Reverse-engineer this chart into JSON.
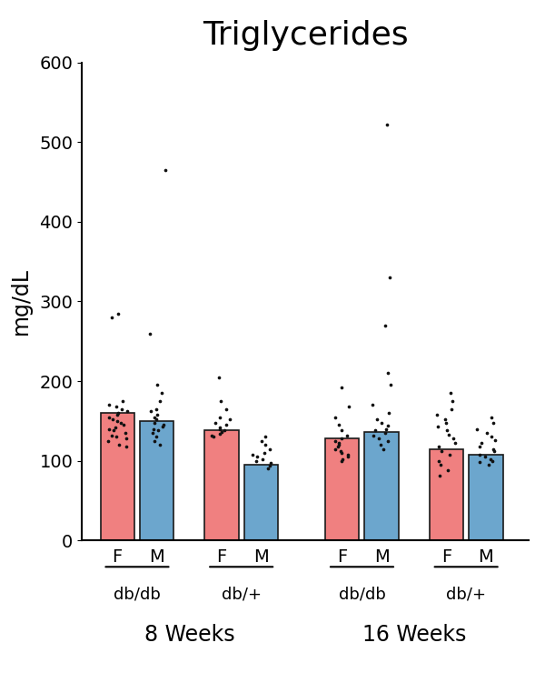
{
  "title": "Triglycerides",
  "ylabel": "mg/dL",
  "ylim": [
    0,
    600
  ],
  "yticks": [
    0,
    100,
    200,
    300,
    400,
    500,
    600
  ],
  "bar_heights": [
    160,
    150,
    138,
    95,
    128,
    136,
    115,
    108
  ],
  "bar_colors": [
    "#F08080",
    "#6CA6CD",
    "#F08080",
    "#6CA6CD",
    "#F08080",
    "#6CA6CD",
    "#F08080",
    "#6CA6CD"
  ],
  "bar_edge_color": "#1a1a1a",
  "bar_width": 0.62,
  "group_labels": [
    "F",
    "M",
    "F",
    "M",
    "F",
    "M",
    "F",
    "M"
  ],
  "genotype_labels": [
    "db/db",
    "db/+",
    "db/db",
    "db/+"
  ],
  "age_labels": [
    "8 Weeks",
    "16 Weeks"
  ],
  "dot_color": "#111111",
  "dot_size": 7,
  "dots": [
    [
      170,
      175,
      168,
      165,
      163,
      160,
      158,
      155,
      152,
      150,
      148,
      145,
      142,
      140,
      138,
      135,
      132,
      130,
      128,
      125,
      120,
      118,
      280,
      285
    ],
    [
      465,
      260,
      195,
      185,
      175,
      165,
      162,
      158,
      155,
      152,
      148,
      145,
      143,
      140,
      138,
      135,
      130,
      125,
      120
    ],
    [
      205,
      175,
      165,
      155,
      152,
      148,
      145,
      142,
      140,
      138,
      136,
      134,
      132,
      130
    ],
    [
      130,
      125,
      120,
      115,
      110,
      108,
      105,
      102,
      100,
      97,
      94,
      90
    ],
    [
      192,
      168,
      155,
      145,
      138,
      132,
      128,
      125,
      122,
      120,
      118,
      115,
      112,
      110,
      108,
      105,
      102,
      100
    ],
    [
      522,
      330,
      270,
      210,
      195,
      170,
      160,
      152,
      148,
      144,
      140,
      138,
      135,
      132,
      128,
      125,
      120,
      115
    ],
    [
      185,
      175,
      165,
      158,
      152,
      148,
      143,
      138,
      133,
      128,
      122,
      118,
      112,
      108,
      100,
      95,
      88,
      82
    ],
    [
      155,
      148,
      140,
      135,
      130,
      126,
      122,
      118,
      115,
      112,
      108,
      105,
      102,
      100,
      98,
      95
    ]
  ],
  "background_color": "#ffffff",
  "positions": [
    1.0,
    1.72,
    2.9,
    3.62,
    5.1,
    5.82,
    7.0,
    7.72
  ],
  "xlim": [
    0.35,
    8.5
  ],
  "tick_fontsize": 14,
  "ylabel_fontsize": 17,
  "title_fontsize": 26,
  "genotype_fontsize": 13,
  "age_fontsize": 17
}
